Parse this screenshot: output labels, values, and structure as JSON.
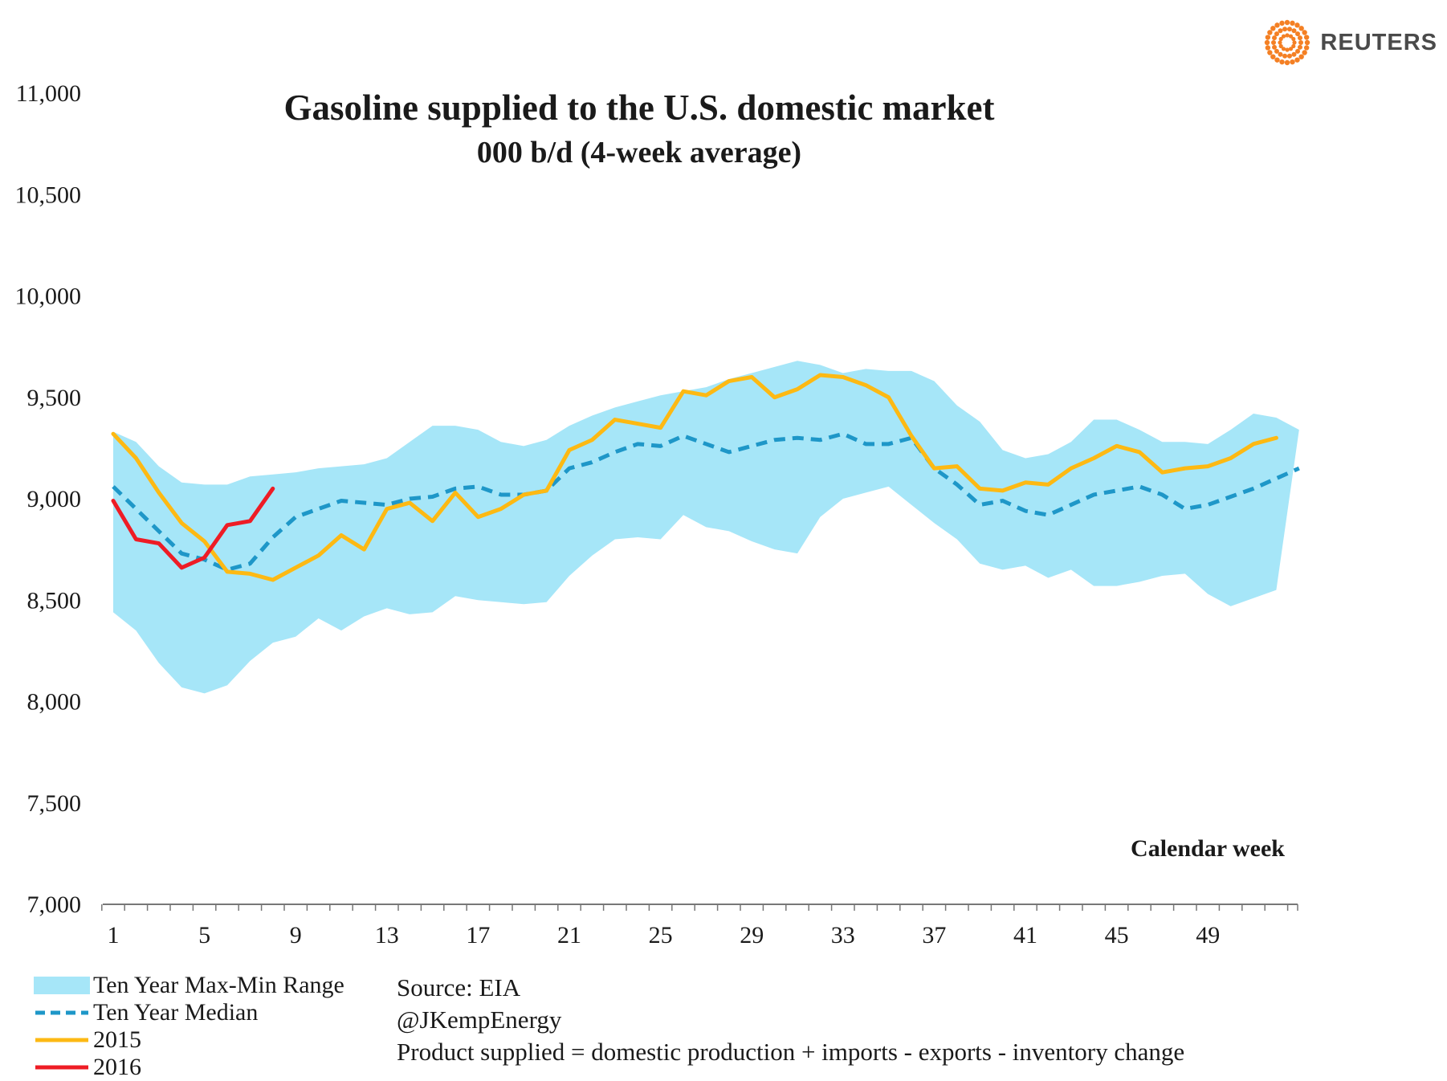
{
  "brand": {
    "name": "REUTERS"
  },
  "chart_data": {
    "type": "line",
    "title": "Gasoline supplied to the U.S. domestic market",
    "subtitle": "000 b/d (4-week average)",
    "xlabel": "Calendar week",
    "ylabel": "",
    "ylim": [
      7000,
      11000
    ],
    "xlim": [
      1,
      53
    ],
    "yticks": [
      7000,
      7500,
      8000,
      8500,
      9000,
      9500,
      10000,
      10500,
      11000
    ],
    "ytick_labels": [
      "7,000",
      "7,500",
      "8,000",
      "8,500",
      "9,000",
      "9,500",
      "10,000",
      "10,500",
      "11,000"
    ],
    "xticks": [
      1,
      5,
      9,
      13,
      17,
      21,
      25,
      29,
      33,
      37,
      41,
      45,
      49
    ],
    "xtick_labels": [
      "1",
      "5",
      "9",
      "13",
      "17",
      "21",
      "25",
      "29",
      "33",
      "37",
      "41",
      "45",
      "49"
    ],
    "range": {
      "name": "Ten Year Max-Min Range",
      "color": "#a6e6f8",
      "max": [
        9330,
        9280,
        9160,
        9080,
        9070,
        9070,
        9110,
        9120,
        9130,
        9150,
        9160,
        9170,
        9200,
        9280,
        9360,
        9360,
        9340,
        9280,
        9260,
        9290,
        9360,
        9410,
        9450,
        9480,
        9510,
        9530,
        9550,
        9590,
        9620,
        9650,
        9680,
        9660,
        9620,
        9640,
        9630,
        9630,
        9580,
        9460,
        9380,
        9240,
        9200,
        9220,
        9280,
        9390,
        9390,
        9340,
        9280,
        9280,
        9270,
        9340,
        9420,
        9400,
        9340
      ],
      "min": [
        8440,
        8350,
        8190,
        8070,
        8040,
        8080,
        8200,
        8290,
        8320,
        8410,
        8350,
        8420,
        8460,
        8430,
        8440,
        8520,
        8500,
        8490,
        8480,
        8490,
        8620,
        8720,
        8800,
        8810,
        8800,
        8920,
        8860,
        8840,
        8790,
        8750,
        8730,
        8910,
        9000,
        9030,
        9060,
        8970,
        8880,
        8800,
        8680,
        8650,
        8670,
        8610,
        8650,
        8570,
        8570,
        8590,
        8620,
        8630,
        8530,
        8470,
        8510,
        8550,
        null
      ]
    },
    "series": [
      {
        "name": "Ten Year Median",
        "color": "#1e97c8",
        "style": "dashed",
        "values": [
          9060,
          8950,
          8840,
          8730,
          8700,
          8650,
          8680,
          8810,
          8910,
          8950,
          8990,
          8980,
          8970,
          9000,
          9010,
          9050,
          9060,
          9020,
          9020,
          9040,
          9150,
          9180,
          9230,
          9270,
          9260,
          9310,
          9270,
          9230,
          9260,
          9290,
          9300,
          9290,
          9320,
          9270,
          9270,
          9300,
          9150,
          9070,
          8970,
          8990,
          8940,
          8920,
          8970,
          9020,
          9040,
          9060,
          9020,
          8950,
          8970,
          9010,
          9050,
          9100,
          9150
        ]
      },
      {
        "name": "2015",
        "color": "#fdb913",
        "style": "solid",
        "values": [
          9320,
          9200,
          9030,
          8880,
          8790,
          8640,
          8630,
          8600,
          8660,
          8720,
          8820,
          8750,
          8950,
          8980,
          8890,
          9030,
          8910,
          8950,
          9020,
          9040,
          9240,
          9290,
          9390,
          9370,
          9350,
          9530,
          9510,
          9580,
          9600,
          9500,
          9540,
          9610,
          9600,
          9560,
          9500,
          9310,
          9150,
          9160,
          9050,
          9040,
          9080,
          9070,
          9150,
          9200,
          9260,
          9230,
          9130,
          9150,
          9160,
          9200,
          9270,
          9300,
          null
        ]
      },
      {
        "name": "2016",
        "color": "#ee1c25",
        "style": "solid",
        "values": [
          8990,
          8800,
          8780,
          8660,
          8710,
          8870,
          8890,
          9050
        ]
      }
    ],
    "legend": [
      "Ten Year Max-Min Range",
      "Ten Year Median",
      "2015",
      "2016"
    ],
    "annotations": [
      "Source: EIA",
      "@JKempEnergy",
      "Product supplied = domestic production + imports - exports - inventory change"
    ],
    "grid": false
  }
}
